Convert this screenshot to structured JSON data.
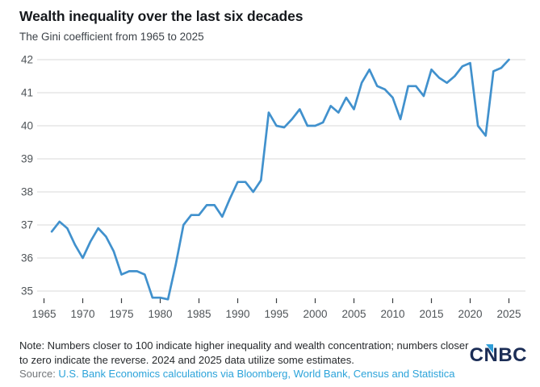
{
  "header": {
    "title": "Wealth inequality over the last six decades",
    "subtitle": "The Gini coefficient from 1965 to 2025"
  },
  "chart_data": {
    "type": "line",
    "title": "Wealth inequality over the last six decades",
    "subtitle": "The Gini coefficient from 1965 to 2025",
    "series_name": "Gini coefficient",
    "x": [
      1966,
      1967,
      1968,
      1969,
      1970,
      1971,
      1972,
      1973,
      1974,
      1975,
      1976,
      1977,
      1978,
      1979,
      1980,
      1981,
      1982,
      1983,
      1984,
      1985,
      1986,
      1987,
      1988,
      1989,
      1990,
      1991,
      1992,
      1993,
      1994,
      1995,
      1996,
      1997,
      1998,
      1999,
      2000,
      2001,
      2002,
      2003,
      2004,
      2005,
      2006,
      2007,
      2008,
      2009,
      2010,
      2011,
      2012,
      2013,
      2014,
      2015,
      2016,
      2017,
      2018,
      2019,
      2020,
      2021,
      2022,
      2023,
      2024,
      2025
    ],
    "values": [
      36.8,
      37.1,
      36.9,
      36.4,
      36.0,
      36.5,
      36.9,
      36.65,
      36.2,
      35.5,
      35.6,
      35.6,
      35.5,
      34.8,
      34.8,
      34.75,
      35.8,
      37.0,
      37.3,
      37.3,
      37.6,
      37.6,
      37.25,
      37.8,
      38.3,
      38.3,
      38.0,
      38.35,
      40.4,
      40.0,
      39.95,
      40.2,
      40.5,
      40.0,
      40.0,
      40.1,
      40.6,
      40.4,
      40.85,
      40.5,
      41.3,
      41.7,
      41.2,
      41.1,
      40.85,
      40.2,
      41.2,
      41.2,
      40.9,
      41.7,
      41.45,
      41.3,
      41.5,
      41.8,
      41.9,
      40.0,
      39.7,
      41.65,
      41.75,
      42.0
    ],
    "xlabel": "",
    "ylabel": "",
    "ylim": [
      34.6,
      42.3
    ],
    "yticks": [
      35,
      36,
      37,
      38,
      39,
      40,
      41,
      42
    ],
    "xticks": [
      1965,
      1970,
      1975,
      1980,
      1985,
      1990,
      1995,
      2000,
      2005,
      2010,
      2015,
      2020,
      2025
    ],
    "grid": true,
    "legend": false,
    "line_color": "#4191cd",
    "grid_color": "#d9d9d9",
    "axis_text_color": "#4f5458",
    "tick_color": "#3a3d40"
  },
  "footer": {
    "note_line1": "Note: Numbers closer to 100 indicate higher inequality and wealth concentration; numbers closer",
    "note_line2": "to zero indicate the reverse. 2024 and 2025 data utilize some estimates.",
    "source_prefix": "Source: ",
    "source_link": "U.S. Bank Economics calculations via Bloomberg, World Bank, Census and Statistica"
  },
  "logo": {
    "part1": "C",
    "part2": "N",
    "part3": "BC",
    "navy": "#1b2d56",
    "blue": "#2f9ed9"
  }
}
